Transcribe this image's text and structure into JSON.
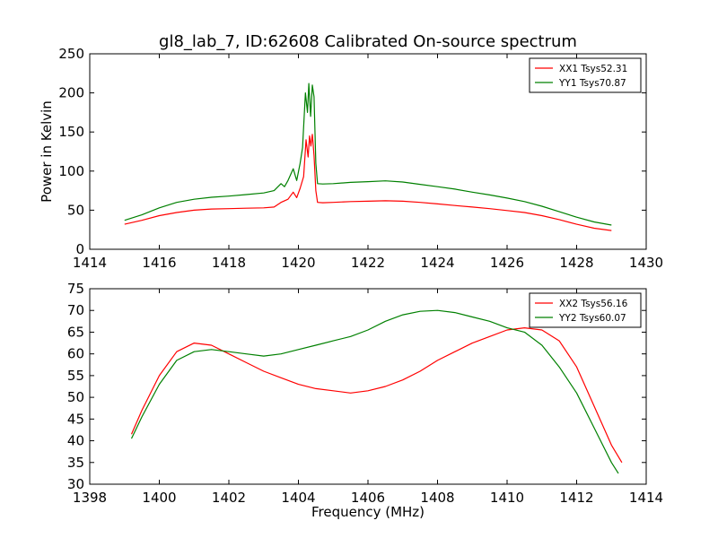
{
  "figure": {
    "title": "gl8_lab_7, ID:62608 Calibrated On-source spectrum"
  },
  "colors": {
    "xx": "#ff0000",
    "yy": "#008000",
    "axes": "#000000",
    "background": "#ffffff"
  },
  "chart_data": [
    {
      "type": "line",
      "title": "gl8_lab_7, ID:62608 Calibrated On-source spectrum",
      "xlabel": "",
      "ylabel": "Power in Kelvin",
      "xlim": [
        1414,
        1430
      ],
      "ylim": [
        0,
        250
      ],
      "xticks": [
        1414,
        1416,
        1418,
        1420,
        1422,
        1424,
        1426,
        1428,
        1430
      ],
      "yticks": [
        0,
        50,
        100,
        150,
        200,
        250
      ],
      "grid": false,
      "legend": "top-right",
      "series": [
        {
          "name": "XX1 Tsys52.31",
          "color": "#ff0000",
          "points": [
            [
              1415.0,
              32
            ],
            [
              1415.5,
              37
            ],
            [
              1416.0,
              43
            ],
            [
              1416.5,
              47
            ],
            [
              1417.0,
              50
            ],
            [
              1417.5,
              51.5
            ],
            [
              1418.0,
              52
            ],
            [
              1418.5,
              52.5
            ],
            [
              1419.0,
              53
            ],
            [
              1419.3,
              54
            ],
            [
              1419.5,
              60
            ],
            [
              1419.6,
              62
            ],
            [
              1419.7,
              64
            ],
            [
              1419.85,
              73
            ],
            [
              1419.95,
              66
            ],
            [
              1420.05,
              78
            ],
            [
              1420.15,
              93
            ],
            [
              1420.22,
              140
            ],
            [
              1420.28,
              118
            ],
            [
              1420.32,
              145
            ],
            [
              1420.36,
              132
            ],
            [
              1420.4,
              147
            ],
            [
              1420.45,
              120
            ],
            [
              1420.5,
              75
            ],
            [
              1420.55,
              60
            ],
            [
              1420.7,
              59.5
            ],
            [
              1421.0,
              60
            ],
            [
              1421.5,
              61
            ],
            [
              1422.0,
              61.5
            ],
            [
              1422.5,
              62
            ],
            [
              1423.0,
              61.5
            ],
            [
              1423.5,
              60
            ],
            [
              1424.0,
              58
            ],
            [
              1424.5,
              56
            ],
            [
              1425.0,
              54
            ],
            [
              1425.5,
              52
            ],
            [
              1426.0,
              49.5
            ],
            [
              1426.5,
              47
            ],
            [
              1427.0,
              43
            ],
            [
              1427.5,
              38
            ],
            [
              1428.0,
              32
            ],
            [
              1428.5,
              27
            ],
            [
              1429.0,
              24
            ]
          ]
        },
        {
          "name": "YY1 Tsys70.87",
          "color": "#008000",
          "points": [
            [
              1415.0,
              37
            ],
            [
              1415.5,
              44
            ],
            [
              1416.0,
              53
            ],
            [
              1416.5,
              60
            ],
            [
              1417.0,
              64
            ],
            [
              1417.5,
              66.5
            ],
            [
              1418.0,
              68
            ],
            [
              1418.5,
              70
            ],
            [
              1419.0,
              72
            ],
            [
              1419.3,
              75
            ],
            [
              1419.5,
              84
            ],
            [
              1419.6,
              80
            ],
            [
              1419.7,
              88
            ],
            [
              1419.85,
              103
            ],
            [
              1419.95,
              88
            ],
            [
              1420.05,
              110
            ],
            [
              1420.12,
              130
            ],
            [
              1420.2,
              200
            ],
            [
              1420.26,
              175
            ],
            [
              1420.3,
              212
            ],
            [
              1420.35,
              170
            ],
            [
              1420.4,
              210
            ],
            [
              1420.45,
              195
            ],
            [
              1420.5,
              110
            ],
            [
              1420.55,
              84
            ],
            [
              1420.7,
              83.5
            ],
            [
              1421.0,
              84
            ],
            [
              1421.5,
              85.5
            ],
            [
              1422.0,
              86.5
            ],
            [
              1422.5,
              87.5
            ],
            [
              1423.0,
              86
            ],
            [
              1423.5,
              83
            ],
            [
              1424.0,
              80
            ],
            [
              1424.5,
              77
            ],
            [
              1425.0,
              73
            ],
            [
              1425.5,
              69.5
            ],
            [
              1426.0,
              65.5
            ],
            [
              1426.5,
              61
            ],
            [
              1427.0,
              55
            ],
            [
              1427.5,
              48
            ],
            [
              1428.0,
              41
            ],
            [
              1428.5,
              35
            ],
            [
              1429.0,
              31
            ]
          ]
        }
      ]
    },
    {
      "type": "line",
      "title": "",
      "xlabel": "Frequency (MHz)",
      "ylabel": "",
      "xlim": [
        1398,
        1414
      ],
      "ylim": [
        30,
        75
      ],
      "xticks": [
        1398,
        1400,
        1402,
        1404,
        1406,
        1408,
        1410,
        1412,
        1414
      ],
      "yticks": [
        30,
        35,
        40,
        45,
        50,
        55,
        60,
        65,
        70,
        75
      ],
      "grid": false,
      "legend": "top-right",
      "series": [
        {
          "name": "XX2 Tsys56.16",
          "color": "#ff0000",
          "points": [
            [
              1399.2,
              41.5
            ],
            [
              1399.5,
              47
            ],
            [
              1400.0,
              55
            ],
            [
              1400.5,
              60.5
            ],
            [
              1401.0,
              62.5
            ],
            [
              1401.5,
              62
            ],
            [
              1402.0,
              60
            ],
            [
              1402.5,
              58
            ],
            [
              1403.0,
              56
            ],
            [
              1403.5,
              54.5
            ],
            [
              1404.0,
              53
            ],
            [
              1404.5,
              52
            ],
            [
              1405.0,
              51.5
            ],
            [
              1405.5,
              51
            ],
            [
              1406.0,
              51.5
            ],
            [
              1406.5,
              52.5
            ],
            [
              1407.0,
              54
            ],
            [
              1407.5,
              56
            ],
            [
              1408.0,
              58.5
            ],
            [
              1408.5,
              60.5
            ],
            [
              1409.0,
              62.5
            ],
            [
              1409.5,
              64
            ],
            [
              1410.0,
              65.5
            ],
            [
              1410.5,
              66
            ],
            [
              1411.0,
              65.5
            ],
            [
              1411.5,
              63
            ],
            [
              1412.0,
              57
            ],
            [
              1412.5,
              48
            ],
            [
              1413.0,
              39
            ],
            [
              1413.3,
              35
            ]
          ]
        },
        {
          "name": "YY2 Tsys60.07",
          "color": "#008000",
          "points": [
            [
              1399.2,
              40.5
            ],
            [
              1399.5,
              45.5
            ],
            [
              1400.0,
              53
            ],
            [
              1400.5,
              58.5
            ],
            [
              1401.0,
              60.5
            ],
            [
              1401.5,
              61
            ],
            [
              1402.0,
              60.5
            ],
            [
              1402.5,
              60
            ],
            [
              1403.0,
              59.5
            ],
            [
              1403.5,
              60
            ],
            [
              1404.0,
              61
            ],
            [
              1404.5,
              62
            ],
            [
              1405.0,
              63
            ],
            [
              1405.5,
              64
            ],
            [
              1406.0,
              65.5
            ],
            [
              1406.5,
              67.5
            ],
            [
              1407.0,
              69
            ],
            [
              1407.5,
              69.8
            ],
            [
              1408.0,
              70
            ],
            [
              1408.5,
              69.5
            ],
            [
              1409.0,
              68.5
            ],
            [
              1409.5,
              67.5
            ],
            [
              1410.0,
              66
            ],
            [
              1410.5,
              65
            ],
            [
              1411.0,
              62
            ],
            [
              1411.5,
              57
            ],
            [
              1412.0,
              51
            ],
            [
              1412.5,
              43
            ],
            [
              1413.0,
              35
            ],
            [
              1413.2,
              32.5
            ]
          ]
        }
      ]
    }
  ]
}
